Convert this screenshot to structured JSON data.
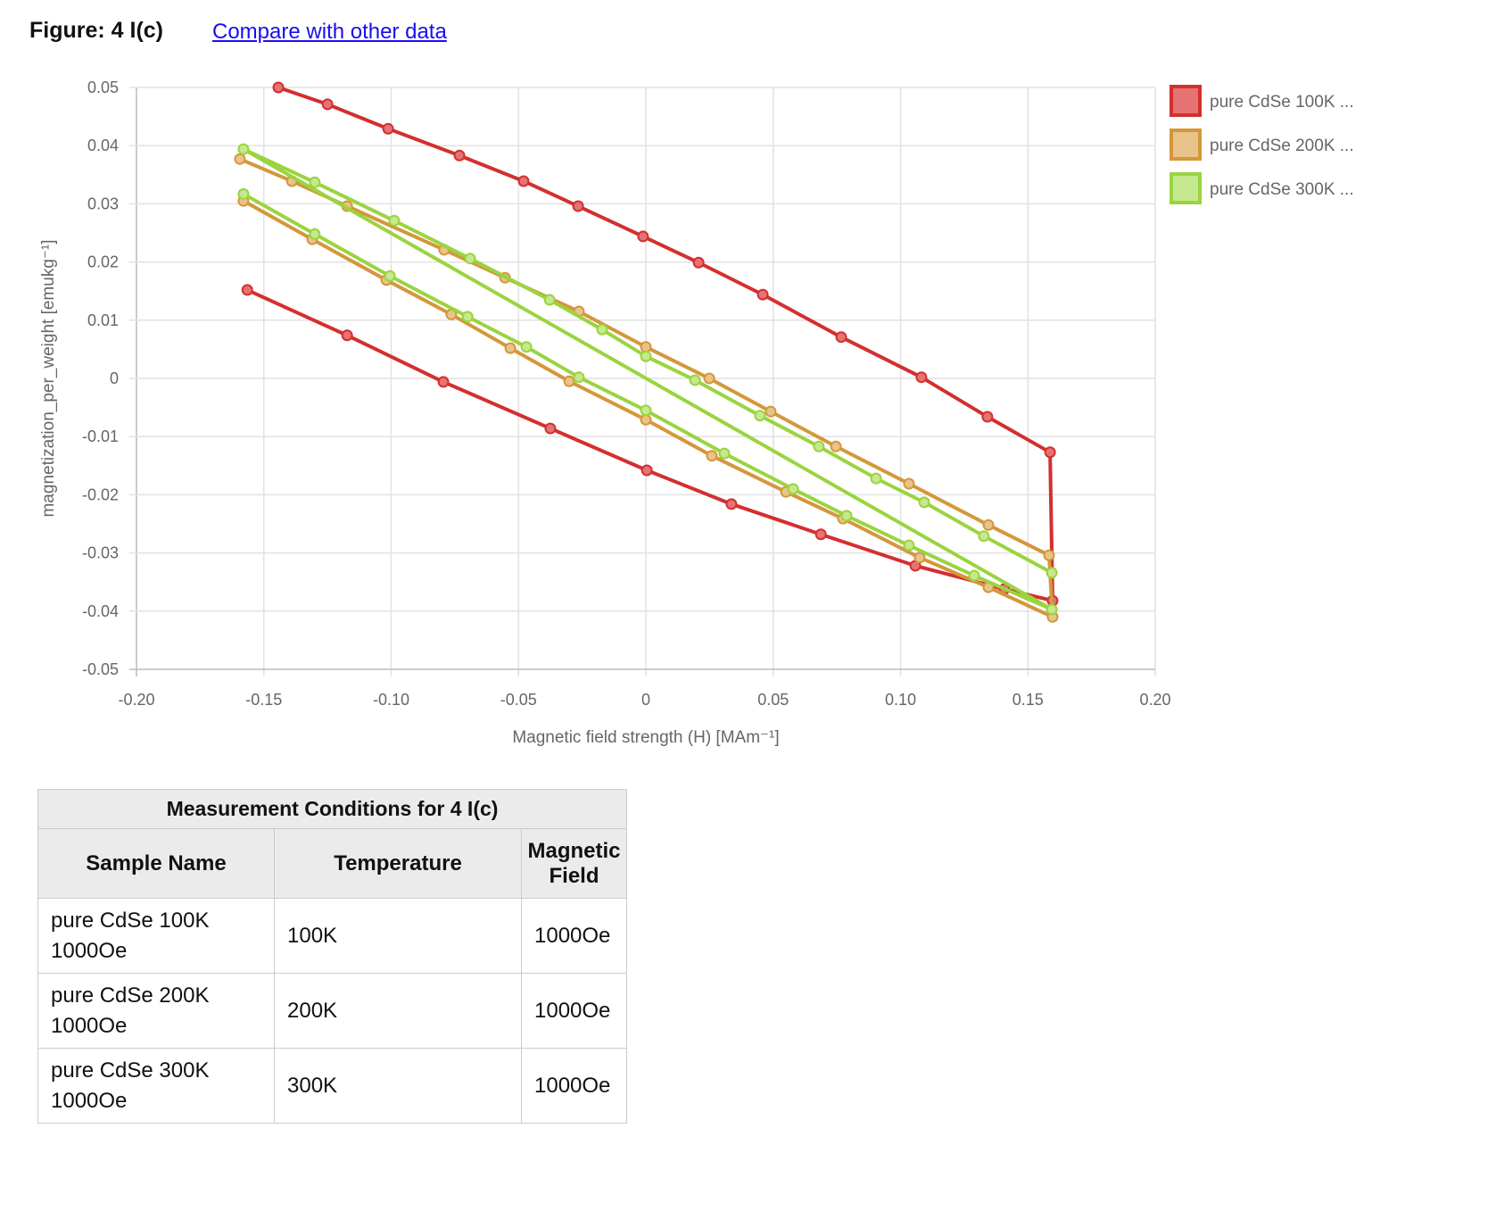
{
  "header": {
    "figure_title": "Figure: 4 I(c)",
    "compare_link": "Compare with other data"
  },
  "chart_data": {
    "type": "line",
    "xlabel": "Magnetic field strength (H) [MAm⁻¹]",
    "ylabel": "magnetization_per_weight [emukg⁻¹]",
    "xlim": [
      -0.2,
      0.2
    ],
    "ylim": [
      -0.05,
      0.05
    ],
    "xticks": [
      "-0.20",
      "-0.15",
      "-0.10",
      "-0.05",
      "0",
      "0.05",
      "0.10",
      "0.15",
      "0.20"
    ],
    "yticks": [
      "0.05",
      "0.04",
      "0.03",
      "0.02",
      "0.01",
      "0",
      "-0.01",
      "-0.02",
      "-0.03",
      "-0.04",
      "-0.05"
    ],
    "grid": true,
    "legend_position": "right",
    "series": [
      {
        "name": "pure CdSe 100K ...",
        "color": "#d32f2f",
        "fill": "#e57373",
        "points": [
          [
            -0.1443,
            0.05
          ],
          [
            -0.125,
            0.0471
          ],
          [
            -0.1012,
            0.0429
          ],
          [
            -0.0732,
            0.0383
          ],
          [
            -0.048,
            0.0339
          ],
          [
            -0.0266,
            0.0296
          ],
          [
            -0.0011,
            0.0244
          ],
          [
            0.0207,
            0.0199
          ],
          [
            0.0459,
            0.0144
          ],
          [
            0.0767,
            0.0071
          ],
          [
            0.1082,
            0.0002
          ],
          [
            0.1341,
            -0.0066
          ],
          [
            0.1587,
            -0.0127
          ],
          [
            0.1597,
            -0.0382
          ],
          [
            0.1408,
            -0.0362
          ],
          [
            0.1058,
            -0.0322
          ],
          [
            0.0687,
            -0.0268
          ],
          [
            0.0336,
            -0.0216
          ],
          [
            0.0004,
            -0.0158
          ],
          [
            -0.0375,
            -0.0086
          ],
          [
            -0.0795,
            -0.0006
          ],
          [
            -0.1173,
            0.0074
          ],
          [
            -0.1565,
            0.0152
          ]
        ]
      },
      {
        "name": "pure CdSe 200K ...",
        "color": "#d4973a",
        "fill": "#e8c48a",
        "points": [
          [
            -0.1594,
            0.0377
          ],
          [
            -0.139,
            0.0339
          ],
          [
            -0.1173,
            0.0296
          ],
          [
            -0.0792,
            0.0221
          ],
          [
            -0.0553,
            0.0173
          ],
          [
            -0.0263,
            0.0115
          ],
          [
            0,
            0.0054
          ],
          [
            0.0249,
            0
          ],
          [
            0.049,
            -0.0057
          ],
          [
            0.0746,
            -0.0117
          ],
          [
            0.1033,
            -0.0181
          ],
          [
            0.1345,
            -0.0252
          ],
          [
            0.1583,
            -0.0304
          ],
          [
            0.1597,
            -0.041
          ],
          [
            0.1345,
            -0.0359
          ],
          [
            0.1075,
            -0.0308
          ],
          [
            0.0774,
            -0.0241
          ],
          [
            0.055,
            -0.0195
          ],
          [
            0.0259,
            -0.0133
          ],
          [
            0,
            -0.0071
          ],
          [
            -0.0301,
            -0.0005
          ],
          [
            -0.0532,
            0.0052
          ],
          [
            -0.0764,
            0.011
          ],
          [
            -0.1019,
            0.0169
          ],
          [
            -0.131,
            0.0239
          ],
          [
            -0.158,
            0.0305
          ]
        ]
      },
      {
        "name": "pure CdSe 300K ...",
        "color": "#9ad43f",
        "fill": "#c6e88e",
        "points": [
          [
            -0.158,
            0.0317
          ],
          [
            -0.13,
            0.0248
          ],
          [
            -0.1005,
            0.0176
          ],
          [
            -0.07,
            0.0106
          ],
          [
            -0.0469,
            0.0054
          ],
          [
            -0.0263,
            0.0002
          ],
          [
            0,
            -0.0055
          ],
          [
            0.0308,
            -0.0129
          ],
          [
            0.0578,
            -0.019
          ],
          [
            0.0788,
            -0.0236
          ],
          [
            0.1033,
            -0.0287
          ],
          [
            0.1289,
            -0.0339
          ],
          [
            0.1594,
            -0.0397
          ],
          [
            -0.158,
            0.0394
          ],
          [
            -0.13,
            0.0337
          ],
          [
            -0.0988,
            0.0271
          ],
          [
            -0.069,
            0.0206
          ],
          [
            -0.0378,
            0.0135
          ],
          [
            -0.0172,
            0.0084
          ],
          [
            0,
            0.0038
          ],
          [
            0.0193,
            -0.0003
          ],
          [
            0.0448,
            -0.0064
          ],
          [
            0.0679,
            -0.0117
          ],
          [
            0.0904,
            -0.0172
          ],
          [
            0.1093,
            -0.0213
          ],
          [
            0.1327,
            -0.0271
          ],
          [
            0.1594,
            -0.0334
          ]
        ]
      }
    ]
  },
  "table": {
    "caption": "Measurement Conditions for 4 I(c)",
    "headers": [
      "Sample Name",
      "Temperature",
      "Magnetic Field"
    ],
    "rows": [
      [
        "pure CdSe 100K 1000Oe",
        "100K",
        "1000Oe"
      ],
      [
        "pure CdSe 200K 1000Oe",
        "200K",
        "1000Oe"
      ],
      [
        "pure CdSe 300K 1000Oe",
        "300K",
        "1000Oe"
      ]
    ]
  }
}
